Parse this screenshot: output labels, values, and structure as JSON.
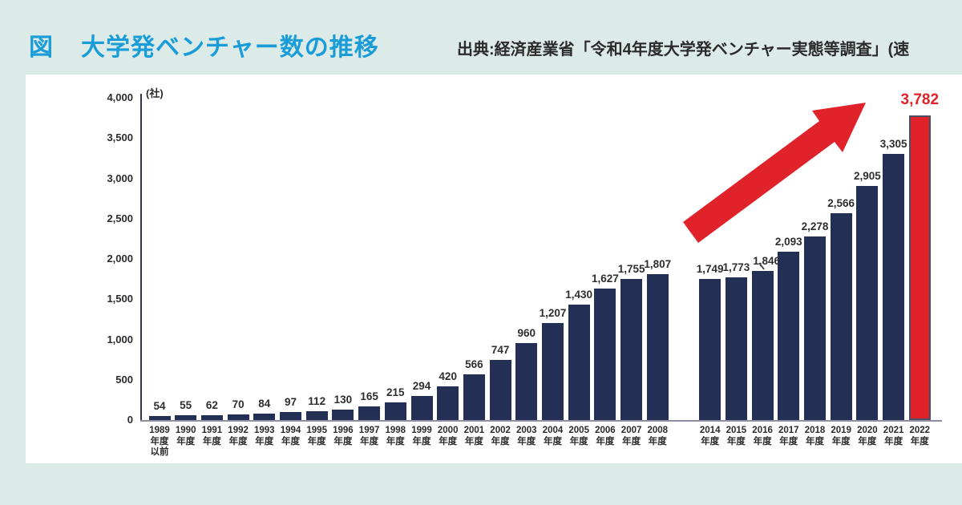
{
  "header": {
    "figure_label": "図",
    "title": "大学発ベンチャー数の推移",
    "source": "出典:経済産業省「令和4年度大学発ベンチャー実態等調査」(速"
  },
  "colors": {
    "background": "#dcebe8",
    "title_blue": "#1a9cd8",
    "bar_navy": "#232f55",
    "highlight_red": "#e0222a"
  },
  "chart_data": {
    "type": "bar",
    "title": "大学発ベンチャー数の推移",
    "unit_label": "(社)",
    "xlabel": "",
    "ylabel": "",
    "ylim": [
      0,
      4000
    ],
    "yticks": [
      0,
      500,
      1000,
      1500,
      2000,
      2500,
      3000,
      3500,
      4000
    ],
    "ytick_labels": [
      "0",
      "500",
      "1,000",
      "1,500",
      "2,000",
      "2,500",
      "3,000",
      "3,500",
      "4,000"
    ],
    "grid": false,
    "legend": false,
    "gap_after_index": 19,
    "annotation": {
      "type": "growth-arrow-up-right",
      "color": "#e0222a"
    },
    "bars": [
      {
        "year": "1989",
        "era": "年度",
        "era2": "以前",
        "value": 54,
        "label": "54"
      },
      {
        "year": "1990",
        "era": "年度",
        "value": 55,
        "label": "55"
      },
      {
        "year": "1991",
        "era": "年度",
        "value": 62,
        "label": "62"
      },
      {
        "year": "1992",
        "era": "年度",
        "value": 70,
        "label": "70"
      },
      {
        "year": "1993",
        "era": "年度",
        "value": 84,
        "label": "84"
      },
      {
        "year": "1994",
        "era": "年度",
        "value": 97,
        "label": "97"
      },
      {
        "year": "1995",
        "era": "年度",
        "value": 112,
        "label": "112"
      },
      {
        "year": "1996",
        "era": "年度",
        "value": 130,
        "label": "130"
      },
      {
        "year": "1997",
        "era": "年度",
        "value": 165,
        "label": "165"
      },
      {
        "year": "1998",
        "era": "年度",
        "value": 215,
        "label": "215"
      },
      {
        "year": "1999",
        "era": "年度",
        "value": 294,
        "label": "294"
      },
      {
        "year": "2000",
        "era": "年度",
        "value": 420,
        "label": "420"
      },
      {
        "year": "2001",
        "era": "年度",
        "value": 566,
        "label": "566"
      },
      {
        "year": "2002",
        "era": "年度",
        "value": 747,
        "label": "747"
      },
      {
        "year": "2003",
        "era": "年度",
        "value": 960,
        "label": "960"
      },
      {
        "year": "2004",
        "era": "年度",
        "value": 1207,
        "label": "1,207"
      },
      {
        "year": "2005",
        "era": "年度",
        "value": 1430,
        "label": "1,430"
      },
      {
        "year": "2006",
        "era": "年度",
        "value": 1627,
        "label": "1,627"
      },
      {
        "year": "2007",
        "era": "年度",
        "value": 1755,
        "label": "1,755"
      },
      {
        "year": "2008",
        "era": "年度",
        "value": 1807,
        "label": "1,807"
      },
      {
        "year": "2014",
        "era": "年度",
        "value": 1749,
        "label": "1,749"
      },
      {
        "year": "2015",
        "era": "年度",
        "value": 1773,
        "label": "1,773"
      },
      {
        "year": "2016",
        "era": "年度",
        "value": 1846,
        "label": "1,846",
        "leader": true,
        "dx": 5
      },
      {
        "year": "2017",
        "era": "年度",
        "value": 2093,
        "label": "2,093"
      },
      {
        "year": "2018",
        "era": "年度",
        "value": 2278,
        "label": "2,278"
      },
      {
        "year": "2019",
        "era": "年度",
        "value": 2566,
        "label": "2,566"
      },
      {
        "year": "2020",
        "era": "年度",
        "value": 2905,
        "label": "2,905"
      },
      {
        "year": "2021",
        "era": "年度",
        "value": 3305,
        "label": "3,305"
      },
      {
        "year": "2022",
        "era": "年度",
        "value": 3782,
        "label": "3,782",
        "highlight": true
      }
    ]
  }
}
